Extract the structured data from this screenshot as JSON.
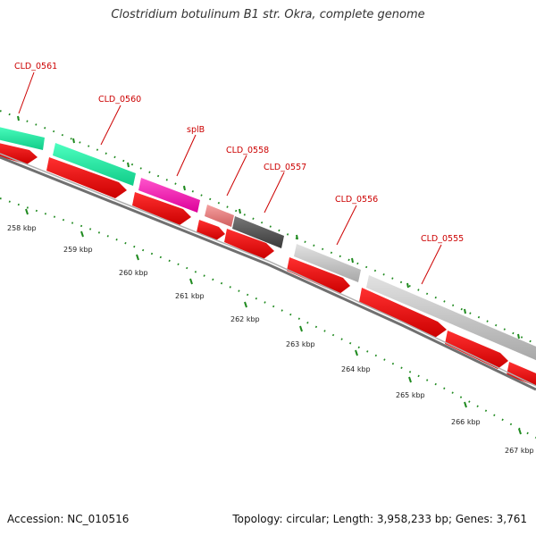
{
  "title": "Clostridium botulinum B1 str. Okra, complete genome",
  "footer": {
    "accession": "Accession: NC_010516",
    "stats": "Topology: circular; Length: 3,958,233 bp; Genes: 3,761"
  },
  "colors": {
    "label": "#cc0000",
    "cds_red": "#ee0000",
    "backbone": "#808080",
    "gc_dots": "#1f8a1f"
  },
  "tick_labels": [
    "258 kbp",
    "259 kbp",
    "260 kbp",
    "261 kbp",
    "262 kbp",
    "263 kbp",
    "264 kbp",
    "265 kbp",
    "266 kbp",
    "267 kbp"
  ],
  "gene_labels": [
    "CLD_0561",
    "CLD_0560",
    "splB",
    "CLD_0558",
    "CLD_0557",
    "CLD_0556",
    "CLD_0555"
  ]
}
